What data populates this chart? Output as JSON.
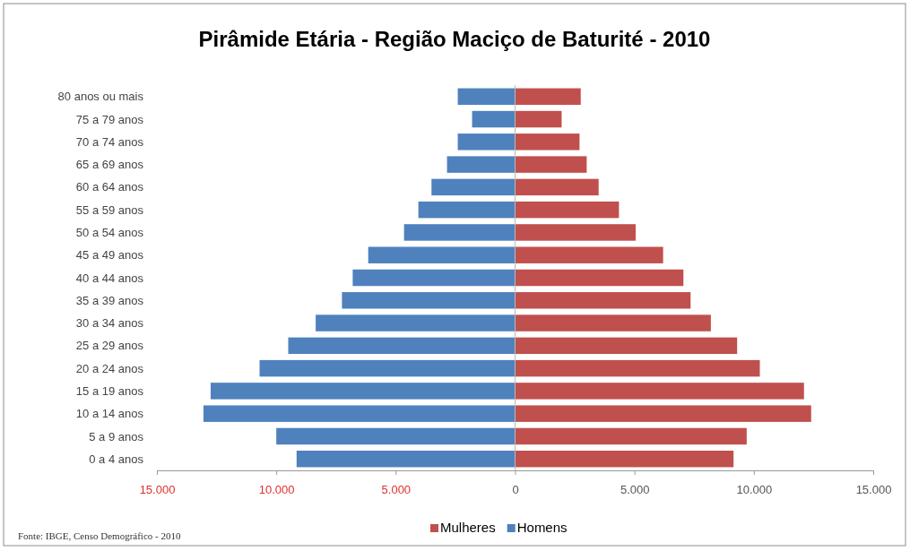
{
  "chart_data": {
    "type": "bar",
    "orientation": "horizontal",
    "stacked": true,
    "title": "Pirâmide Etária - Região Maciço de Baturité - 2010",
    "categories": [
      "80 anos ou mais",
      "75 a 79 anos",
      "70 a 74 anos",
      "65 a 69 anos",
      "60 a 64 anos",
      "55 a 59 anos",
      "50 a 54 anos",
      "45 a 49 anos",
      "40 a 44 anos",
      "35 a 39 anos",
      "30 a 34 anos",
      "25 a 29 anos",
      "20 a 24 anos",
      "15 a 19 anos",
      "10 a 14 anos",
      "5 a 9 anos",
      "0 a 4 anos"
    ],
    "series": [
      {
        "name": "Mulheres",
        "color": "#c0504d",
        "values": [
          2750,
          1950,
          2700,
          3000,
          3500,
          4350,
          5050,
          6200,
          7050,
          7350,
          8200,
          9300,
          10250,
          12100,
          12400,
          9700,
          9150
        ]
      },
      {
        "name": "Homens",
        "color": "#4f81bd",
        "values": [
          -2400,
          -1800,
          -2400,
          -2850,
          -3500,
          -4050,
          -4650,
          -6150,
          -6800,
          -7250,
          -8350,
          -9500,
          -10700,
          -12750,
          -13050,
          -10000,
          -9150
        ]
      }
    ],
    "xlim": [
      -15000,
      15000
    ],
    "xticks": [
      {
        "value": -15000,
        "label": "15.000"
      },
      {
        "value": -10000,
        "label": "10.000"
      },
      {
        "value": -5000,
        "label": "5.000"
      },
      0,
      {
        "value": 5000,
        "label": "5.000"
      },
      {
        "value": 10000,
        "label": "10.000"
      },
      {
        "value": 15000,
        "label": "15.000"
      }
    ],
    "legend": "bottom",
    "annotations": [
      "Fonte: IBGE, Censo Demográfico - 2010"
    ]
  }
}
